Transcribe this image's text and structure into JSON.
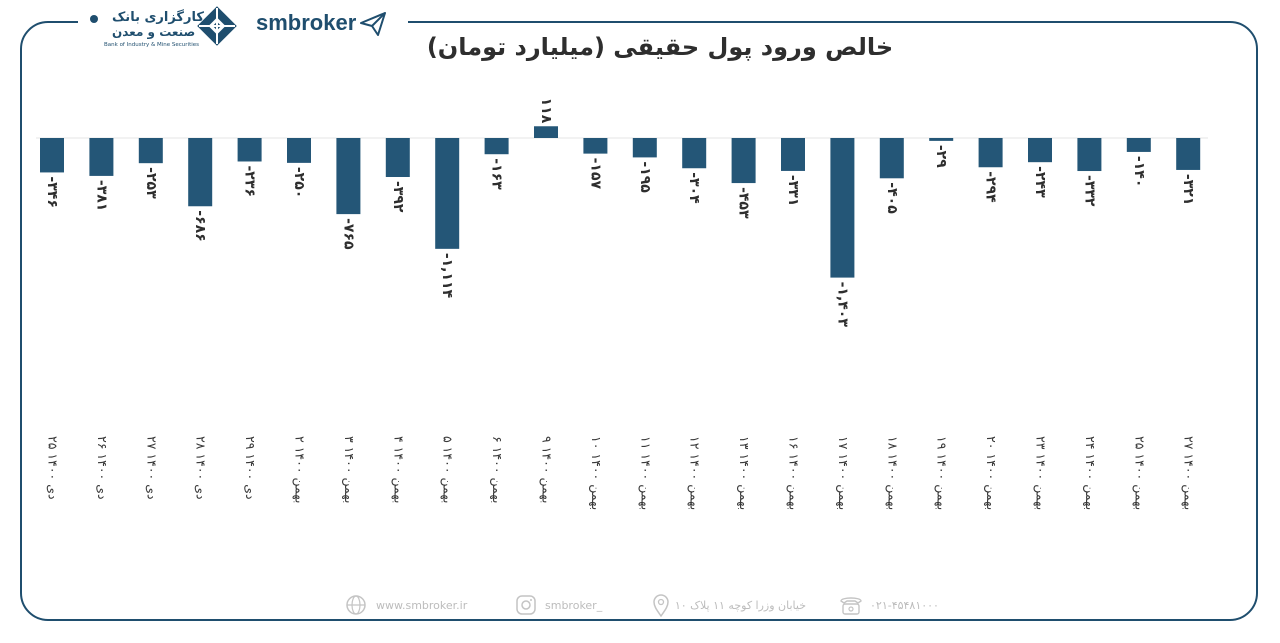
{
  "header": {
    "bank_name_line1": "کارگزاری بانک",
    "bank_name_line2": "صنعت و معدن",
    "bank_name_en": "Bank of Industry & Mine Securities",
    "brand": "smbroker"
  },
  "chart_data": {
    "type": "bar",
    "title": "خالص ورود پول حقیقی (میلیارد تومان)",
    "categories": [
      "۲۵ دی ۱۴۰۰",
      "۲۶ دی ۱۴۰۰",
      "۲۷ دی ۱۴۰۰",
      "۲۸ دی ۱۴۰۰",
      "۲۹ دی ۱۴۰۰",
      "۲ بهمن ۱۴۰۰",
      "۳ بهمن ۱۴۰۰",
      "۴ بهمن ۱۴۰۰",
      "۵ بهمن ۱۴۰۰",
      "۶ بهمن ۱۴۰۰",
      "۹ بهمن ۱۴۰۰",
      "۱۰ بهمن ۱۴۰۰",
      "۱۱ بهمن ۱۴۰۰",
      "۱۲ بهمن ۱۴۰۰",
      "۱۳ بهمن ۱۴۰۰",
      "۱۶ بهمن ۱۴۰۰",
      "۱۷ بهمن ۱۴۰۰",
      "۱۸ بهمن ۱۴۰۰",
      "۱۹ بهمن ۱۴۰۰",
      "۲۰ بهمن ۱۴۰۰",
      "۲۳ بهمن ۱۴۰۰",
      "۲۴ بهمن ۱۴۰۰",
      "۲۵ بهمن ۱۴۰۰",
      "۲۷ بهمن ۱۴۰۰"
    ],
    "values": [
      -346,
      -381,
      -253,
      -686,
      -236,
      -250,
      -765,
      -392,
      -1114,
      -163,
      118,
      -157,
      -195,
      -304,
      -453,
      -331,
      -1403,
      -405,
      -29,
      -294,
      -243,
      -332,
      -140,
      -321
    ],
    "value_labels": [
      "-۳۴۶",
      "-۳۸۱",
      "-۲۵۳",
      "-۶۸۶",
      "-۲۳۶",
      "-۲۵۰",
      "-۷۶۵",
      "-۳۹۲",
      "-۱,۱۱۴",
      "-۱۶۳",
      "۱۱۸",
      "-۱۵۷",
      "-۱۹۵",
      "-۳۰۴",
      "-۴۵۳",
      "-۳۳۱",
      "-۱,۴۰۳",
      "-۴۰۵",
      "-۲۹",
      "-۲۹۴",
      "-۲۴۳",
      "-۳۳۲",
      "-۱۴۰",
      "-۳۲۱"
    ],
    "bar_color": "#245677",
    "grid": false,
    "legend": "none"
  },
  "footer": {
    "website": "www.smbroker.ir",
    "instagram": "smbroker_",
    "address": "خیابان وزرا کوچه ۱۱ پلاک ۱۰",
    "phone": "۰۲۱-۴۵۴۸۱۰۰۰"
  },
  "icons": [
    "globe-icon",
    "instagram-icon",
    "location-pin-icon",
    "phone-icon",
    "paper-plane-icon",
    "bank-logo-icon"
  ]
}
